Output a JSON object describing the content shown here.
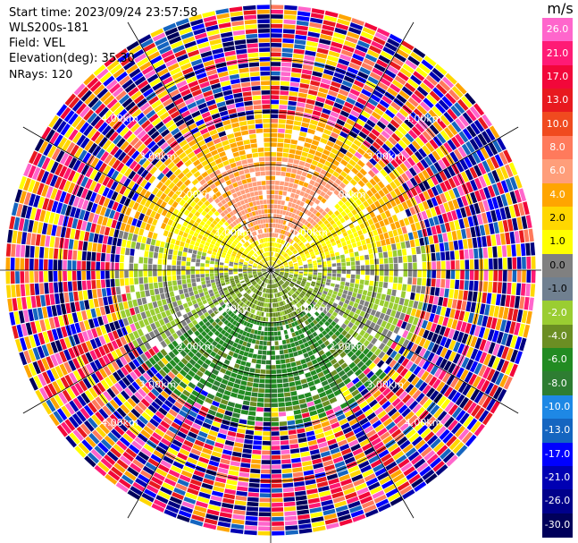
{
  "info": {
    "start_time": "Start time: 2023/09/24 23:57:58",
    "site": "WLS200s-181",
    "field": "Field: VEL",
    "elevation": "Elevation(deg): 35.30",
    "nrays": "NRays: 120"
  },
  "colorbar": {
    "unit": "m/s",
    "labels": [
      "26.0",
      "21.0",
      "17.0",
      "13.0",
      "10.0",
      "8.0",
      "6.0",
      "4.0",
      "2.0",
      "1.0",
      "0.0",
      "-1.0",
      "-2.0",
      "-4.0",
      "-6.0",
      "-8.0",
      "-10.0",
      "-13.0",
      "-17.0",
      "-21.0",
      "-26.0",
      "-30.0"
    ],
    "colors": [
      "#ff66cc",
      "#ff1a75",
      "#f2073a",
      "#e8191f",
      "#f04a1f",
      "#ff7a5c",
      "#ff9e7a",
      "#ffa500",
      "#ffd700",
      "#ffff00",
      "#808080",
      "#708090",
      "#9acd32",
      "#6b8e23",
      "#228b22",
      "#2e7d32",
      "#1e88e5",
      "#1565c0",
      "#0000ff",
      "#0000b3",
      "#00008b",
      "#00005a",
      "#000033"
    ]
  },
  "chart_data": {
    "type": "ppi",
    "field": "VEL",
    "units": "m/s",
    "elevation_deg": 35.3,
    "n_rays": 120,
    "range_rings": [
      "1.00km",
      "2.00km",
      "3.00km",
      "4.00km"
    ]
  }
}
